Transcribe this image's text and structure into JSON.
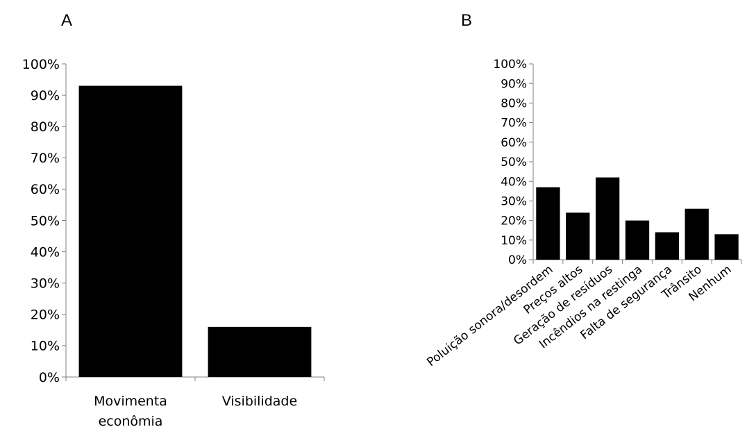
{
  "panels": {
    "a_label": "A",
    "b_label": "B"
  },
  "colors": {
    "bar": "#000000",
    "axis": "#808080"
  },
  "chart_data": [
    {
      "type": "bar",
      "title": "",
      "xlabel": "",
      "ylabel": "",
      "ylim": [
        0,
        100
      ],
      "yticks": [
        0,
        10,
        20,
        30,
        40,
        50,
        60,
        70,
        80,
        90,
        100
      ],
      "tick_suffix": "%",
      "categories": [
        [
          "Movimenta",
          "econômia"
        ],
        [
          "Visibilidade"
        ]
      ],
      "values": [
        93,
        16
      ]
    },
    {
      "type": "bar",
      "title": "",
      "xlabel": "",
      "ylabel": "",
      "ylim": [
        0,
        100
      ],
      "yticks": [
        0,
        10,
        20,
        30,
        40,
        50,
        60,
        70,
        80,
        90,
        100
      ],
      "tick_suffix": "%",
      "categories": [
        "Poluição sonora/desordem",
        "Preços altos",
        "Geração de resíduos",
        "Incêndios na restinga",
        "Falta de segurança",
        "Trânsito",
        "Nenhum"
      ],
      "values": [
        37,
        24,
        42,
        20,
        14,
        26,
        13
      ]
    }
  ]
}
